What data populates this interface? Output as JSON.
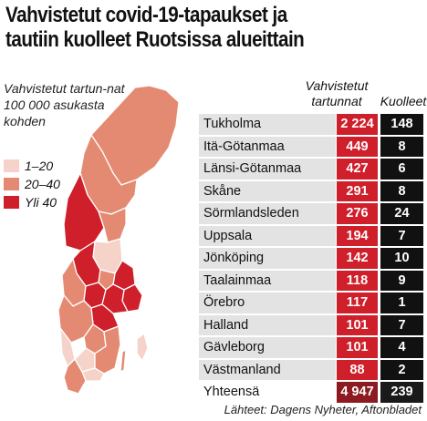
{
  "title_line1": "Vahvistetut covid-19-tapaukset ja",
  "title_line2": "tautiin kuolleet Ruotsissa alueittain",
  "map_subtitle": "Vahvistetut tartun-nat 100 000 asukasta kohden",
  "legend": [
    {
      "label": "1–20",
      "color": "#f6d3c9"
    },
    {
      "label": "20–40",
      "color": "#e58a72"
    },
    {
      "label": "Yli 40",
      "color": "#cf1f2b"
    }
  ],
  "columns": {
    "cases": "Vahvistetut tartunnat",
    "deaths": "Kuolleet"
  },
  "source": "Lähteet: Dagens Nyheter, Aftonbladet",
  "chart_data": {
    "type": "table",
    "columns": [
      "",
      "Vahvistetut tartunnat",
      "Kuolleet"
    ],
    "rows": [
      {
        "region": "Tukholma",
        "cases": "2 224",
        "deaths": "148"
      },
      {
        "region": "Itä-Götanmaa",
        "cases": "449",
        "deaths": "8"
      },
      {
        "region": "Länsi-Götanmaa",
        "cases": "427",
        "deaths": "6"
      },
      {
        "region": "Skåne",
        "cases": "291",
        "deaths": "8"
      },
      {
        "region": "Sörmlandsleden",
        "cases": "276",
        "deaths": "24"
      },
      {
        "region": "Uppsala",
        "cases": "194",
        "deaths": "7"
      },
      {
        "region": "Jönköping",
        "cases": "142",
        "deaths": "10"
      },
      {
        "region": "Taalainmaa",
        "cases": "118",
        "deaths": "9"
      },
      {
        "region": "Örebro",
        "cases": "117",
        "deaths": "1"
      },
      {
        "region": "Halland",
        "cases": "101",
        "deaths": "7"
      },
      {
        "region": "Gävleborg",
        "cases": "101",
        "deaths": "4"
      },
      {
        "region": "Västmanland",
        "cases": "88",
        "deaths": "2"
      }
    ],
    "total": {
      "region": "Yhteensä",
      "cases": "4 947",
      "deaths": "239"
    }
  }
}
